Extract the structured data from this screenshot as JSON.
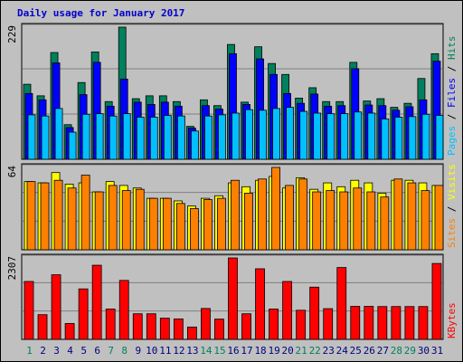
{
  "title": "Daily usage for January 2017",
  "colors": {
    "hits": "#00805c",
    "files": "#0000ff",
    "pages": "#00c0ff",
    "visits": "#ffff00",
    "sites": "#ff8000",
    "kbytes": "#ff0000",
    "background": "#c0c0c0",
    "panel_bg": "#d8d8d8",
    "weekend_label": "#00805c",
    "weekday_label": "#000080"
  },
  "chart_data": [
    {
      "type": "bar",
      "title": "",
      "ymax_label": "229",
      "ylim": [
        0,
        229
      ],
      "grid": true,
      "legend": [
        "Pages",
        "Files",
        "Hits"
      ],
      "categories": [
        "1",
        "2",
        "3",
        "4",
        "5",
        "6",
        "7",
        "8",
        "9",
        "10",
        "11",
        "12",
        "13",
        "14",
        "15",
        "16",
        "17",
        "18",
        "19",
        "20",
        "21",
        "22",
        "23",
        "24",
        "25",
        "26",
        "27",
        "28",
        "29",
        "30",
        "31"
      ],
      "series": [
        {
          "name": "Hits",
          "values": [
            130,
            110,
            185,
            60,
            133,
            186,
            100,
            229,
            105,
            110,
            110,
            100,
            57,
            103,
            93,
            199,
            99,
            195,
            166,
            147,
            106,
            124,
            100,
            100,
            168,
            101,
            105,
            90,
            97,
            140,
            183
          ]
        },
        {
          "name": "Files",
          "values": [
            114,
            103,
            167,
            55,
            112,
            168,
            92,
            139,
            99,
            95,
            99,
            92,
            54,
            93,
            87,
            183,
            95,
            174,
            147,
            114,
            97,
            113,
            92,
            93,
            157,
            94,
            93,
            85,
            91,
            103,
            170
          ]
        },
        {
          "name": "Pages",
          "values": [
            77,
            75,
            88,
            47,
            78,
            79,
            75,
            79,
            73,
            73,
            76,
            75,
            49,
            75,
            77,
            80,
            86,
            85,
            88,
            90,
            83,
            80,
            79,
            79,
            82,
            80,
            70,
            73,
            74,
            78,
            76
          ]
        }
      ]
    },
    {
      "type": "bar",
      "title": "",
      "ymax_label": "64",
      "ylim": [
        0,
        64
      ],
      "grid": true,
      "legend": [
        "Sites",
        "Visits"
      ],
      "categories": [
        "1",
        "2",
        "3",
        "4",
        "5",
        "6",
        "7",
        "8",
        "9",
        "10",
        "11",
        "12",
        "13",
        "14",
        "15",
        "16",
        "17",
        "18",
        "19",
        "20",
        "21",
        "22",
        "23",
        "24",
        "25",
        "26",
        "27",
        "28",
        "29",
        "30",
        "31"
      ],
      "series": [
        {
          "name": "Visits",
          "values": [
            53,
            52,
            60,
            51,
            52,
            45,
            53,
            50,
            48,
            40,
            40,
            38,
            34,
            40,
            42,
            52,
            49,
            54,
            57,
            48,
            56,
            47,
            52,
            49,
            54,
            52,
            44,
            54,
            54,
            52,
            50
          ]
        },
        {
          "name": "Sites",
          "values": [
            53,
            52,
            54,
            48,
            58,
            45,
            50,
            46,
            47,
            40,
            40,
            36,
            32,
            39,
            40,
            54,
            44,
            55,
            64,
            50,
            55,
            45,
            46,
            45,
            48,
            45,
            41,
            55,
            52,
            46,
            50
          ]
        }
      ]
    },
    {
      "type": "bar",
      "title": "",
      "ymax_label": "2307",
      "ylim": [
        0,
        2307
      ],
      "grid": true,
      "legend": [
        "KBytes"
      ],
      "categories": [
        "1",
        "2",
        "3",
        "4",
        "5",
        "6",
        "7",
        "8",
        "9",
        "10",
        "11",
        "12",
        "13",
        "14",
        "15",
        "16",
        "17",
        "18",
        "19",
        "20",
        "21",
        "22",
        "23",
        "24",
        "25",
        "26",
        "27",
        "28",
        "29",
        "30",
        "31"
      ],
      "series": [
        {
          "name": "KBytes",
          "values": [
            1640,
            700,
            1830,
            450,
            1430,
            2100,
            860,
            1670,
            725,
            725,
            600,
            580,
            350,
            875,
            575,
            2307,
            725,
            2000,
            860,
            1640,
            825,
            1480,
            870,
            2035,
            935,
            935,
            930,
            930,
            930,
            930,
            2150
          ]
        }
      ]
    }
  ],
  "x_axis": {
    "days": [
      "1",
      "2",
      "3",
      "4",
      "5",
      "6",
      "7",
      "8",
      "9",
      "10",
      "11",
      "12",
      "13",
      "14",
      "15",
      "16",
      "17",
      "18",
      "19",
      "20",
      "21",
      "22",
      "23",
      "24",
      "25",
      "26",
      "27",
      "28",
      "29",
      "30",
      "31"
    ],
    "weekend_days": [
      "1",
      "7",
      "8",
      "14",
      "15",
      "21",
      "22",
      "28",
      "29"
    ]
  }
}
